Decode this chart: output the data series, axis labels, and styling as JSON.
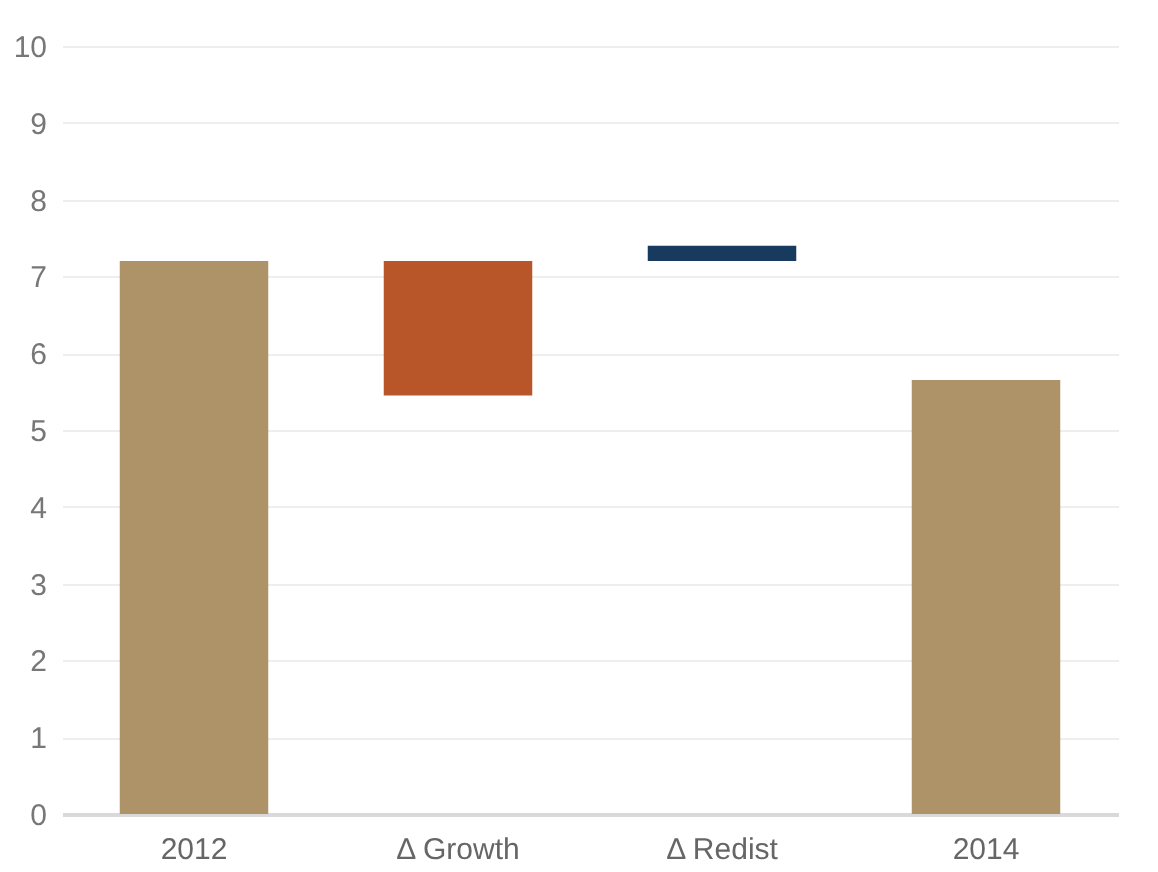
{
  "chart_data": {
    "type": "bar",
    "categories": [
      "2012",
      "Δ Growth",
      "Δ Redist",
      "2014"
    ],
    "values": [
      7.2,
      -1.75,
      0.2,
      5.65
    ],
    "base": [
      0,
      7.2,
      7.2,
      0
    ],
    "colors": [
      "#ae9369",
      "#b8562a",
      "#173a5e",
      "#ae9369"
    ],
    "ylim": [
      0,
      10
    ],
    "yticks": [
      0,
      1,
      2,
      3,
      4,
      5,
      6,
      7,
      8,
      9,
      10
    ],
    "grid": "y"
  }
}
